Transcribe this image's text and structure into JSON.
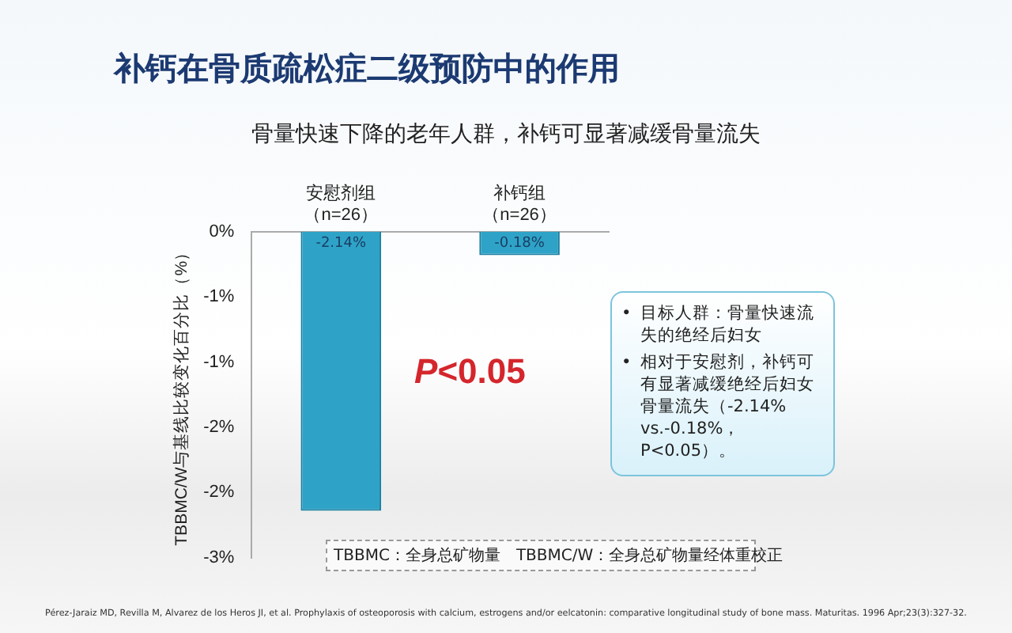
{
  "chart_data": {
    "type": "bar",
    "title": "补钙在骨质疏松症二级预防中的作用",
    "subtitle": "骨量快速下降的老年人群，补钙可显著减缓骨量流失",
    "ylabel": "TBBMC/W与基线比较变化百分比（%）",
    "categories": [
      "安慰剂组（n=26）",
      "补钙组（n=26）"
    ],
    "values": [
      -2.14,
      -0.18
    ],
    "value_labels": [
      "-2.14%",
      "-0.18%"
    ],
    "color": "#2ea3c7",
    "ylim": [
      -2.5,
      0
    ],
    "yticks": [
      {
        "value": 0,
        "label": "0%"
      },
      {
        "value": -0.5,
        "label": "-1%"
      },
      {
        "value": -1,
        "label": "-1%"
      },
      {
        "value": -1.5,
        "label": "-2%"
      },
      {
        "value": -2,
        "label": "-2%"
      },
      {
        "value": -2.5,
        "label": "-3%"
      }
    ],
    "grid": false,
    "legend": false,
    "annotations": [
      "P<0.05",
      "• 目标人群：骨量快速流失的绝经后妇女",
      "• 相对于安慰剂，补钙可有显著减缓绝经后妇女骨量流失（-2.14% vs.-0.18%，P<0.05）。",
      "TBBMC：全身总矿物量　TBBMC/W：全身总矿物量经体重校正",
      "Pérez-Jaraiz MD, Revilla M, Alvarez de los Heros JI, et al. Prophylaxis of osteoporosis with calcium, estrogens and/or eelcatonin: comparative longitudinal study of bone mass. Maturitas. 1996 Apr;23(3):327-32."
    ]
  }
}
